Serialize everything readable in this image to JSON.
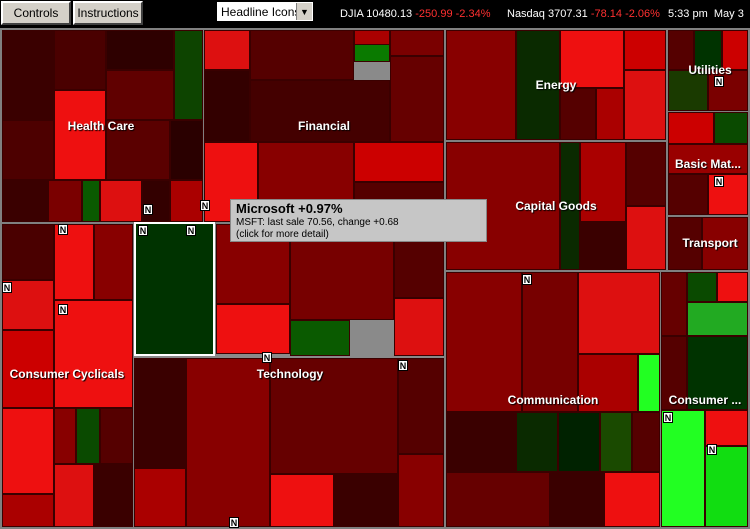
{
  "toolbar": {
    "controls_label": "Controls",
    "instructions_label": "Instructions",
    "view_select_value": "Headline Icons"
  },
  "ticker": {
    "djia_label": "DJIA",
    "djia_value": "10480.13",
    "djia_change": "-250.99",
    "djia_pct": "-2.34%",
    "nasdaq_label": "Nasdaq",
    "nasdaq_value": "3707.31",
    "nasdaq_change": "-78.14",
    "nasdaq_pct": "-2.06%",
    "time": "5:33 pm",
    "date": "May 3"
  },
  "sectors": [
    {
      "id": "health-care",
      "label": "Health Care"
    },
    {
      "id": "financial",
      "label": "Financial"
    },
    {
      "id": "energy",
      "label": "Energy"
    },
    {
      "id": "utilities",
      "label": "Utilities"
    },
    {
      "id": "basic-materials",
      "label": "Basic Mat..."
    },
    {
      "id": "capital-goods",
      "label": "Capital Goods"
    },
    {
      "id": "transport",
      "label": "Transport"
    },
    {
      "id": "consumer-cyclicals",
      "label": "Consumer Cyclicals"
    },
    {
      "id": "technology",
      "label": "Technology"
    },
    {
      "id": "communication",
      "label": "Communication"
    },
    {
      "id": "consumer-noncyclicals",
      "label": "Consumer ..."
    }
  ],
  "badge_label": "N",
  "tooltip": {
    "title": "Microsoft +0.97%",
    "line1": "MSFT: last sale 70.56,  change +0.68",
    "line2": "(click for more detail)"
  },
  "colors": {
    "dark_red": "#3a0000",
    "red": "#cc0000",
    "bright_red": "#ff2020",
    "dark_green": "#003300",
    "bright_green": "#22ff22",
    "background": "#000000"
  }
}
